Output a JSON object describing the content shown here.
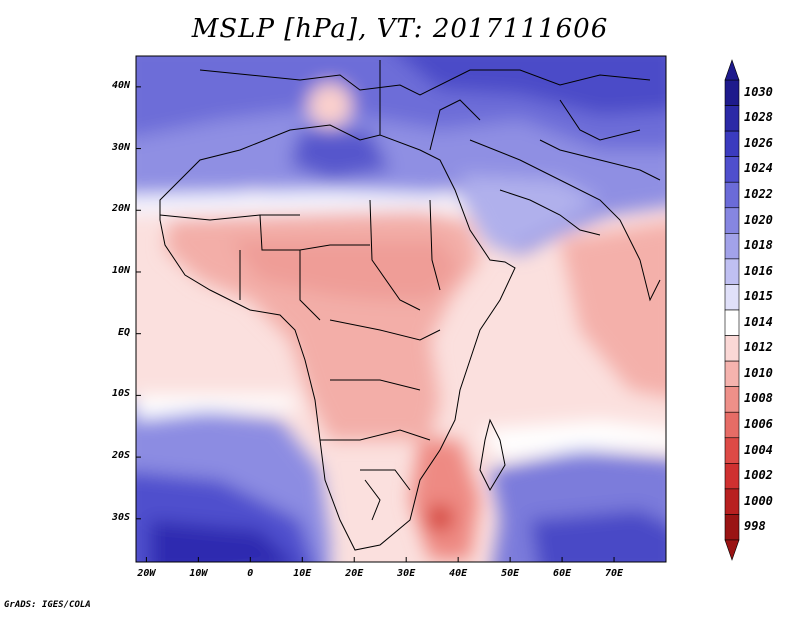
{
  "title": "MSLP [hPa], VT: 2017111606",
  "credit": "GrADS: IGES/COLA",
  "map": {
    "lat_labels": [
      "40N",
      "30N",
      "20N",
      "10N",
      "EQ",
      "10S",
      "20S",
      "30S"
    ],
    "lat_values": [
      40,
      30,
      20,
      10,
      0,
      -10,
      -20,
      -30
    ],
    "lon_labels": [
      "20W",
      "10W",
      "0",
      "10E",
      "20E",
      "30E",
      "40E",
      "50E",
      "60E",
      "70E"
    ],
    "lon_values": [
      -20,
      -10,
      0,
      10,
      20,
      30,
      40,
      50,
      60,
      70
    ],
    "extent": {
      "lon_min": -22,
      "lon_max": 80,
      "lat_min": -37,
      "lat_max": 45
    }
  },
  "colorbar": {
    "levels": [
      "1030",
      "1028",
      "1026",
      "1024",
      "1022",
      "1020",
      "1018",
      "1016",
      "1015",
      "1014",
      "1012",
      "1010",
      "1008",
      "1006",
      "1004",
      "1002",
      "1000",
      "998"
    ],
    "colors": [
      "#1e1a8c",
      "#2b29a6",
      "#3b3bbf",
      "#4f4fcd",
      "#6b6bd8",
      "#8686e1",
      "#a2a2e9",
      "#c0c0f2",
      "#e0e0f9",
      "#ffffff",
      "#fbd8d6",
      "#f5b3ae",
      "#ee9089",
      "#e66c66",
      "#dd4a46",
      "#cf3030",
      "#b82020",
      "#9a1414"
    ]
  }
}
